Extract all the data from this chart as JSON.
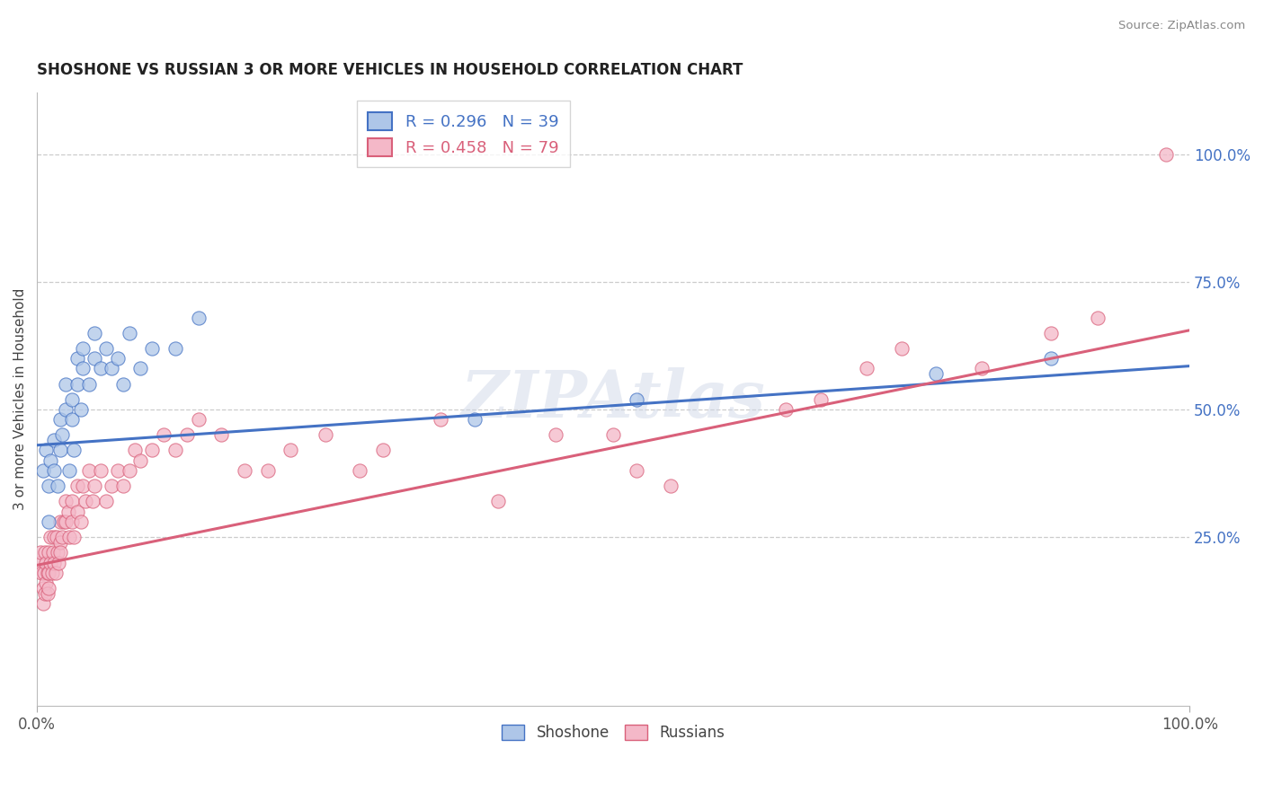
{
  "title": "SHOSHONE VS RUSSIAN 3 OR MORE VEHICLES IN HOUSEHOLD CORRELATION CHART",
  "source": "Source: ZipAtlas.com",
  "ylabel": "3 or more Vehicles in Household",
  "xlim": [
    0,
    1.0
  ],
  "ylim": [
    -0.08,
    1.12
  ],
  "ytick_labels_right": [
    "100.0%",
    "75.0%",
    "50.0%",
    "25.0%"
  ],
  "ytick_vals_right": [
    1.0,
    0.75,
    0.5,
    0.25
  ],
  "shoshone_R": 0.296,
  "shoshone_N": 39,
  "russian_R": 0.458,
  "russian_N": 79,
  "shoshone_color": "#aec6e8",
  "shoshone_line_color": "#4472c4",
  "russian_color": "#f4b8c8",
  "russian_line_color": "#d9607a",
  "legend_label1": "Shoshone",
  "legend_label2": "Russians",
  "watermark": "ZIPAtlas",
  "shoshone_line_start": 0.43,
  "shoshone_line_end": 0.585,
  "russian_line_start": 0.195,
  "russian_line_end": 0.655,
  "shoshone_x": [
    0.005,
    0.008,
    0.01,
    0.01,
    0.012,
    0.015,
    0.015,
    0.018,
    0.02,
    0.02,
    0.022,
    0.025,
    0.025,
    0.028,
    0.03,
    0.03,
    0.032,
    0.035,
    0.035,
    0.038,
    0.04,
    0.04,
    0.045,
    0.05,
    0.05,
    0.055,
    0.06,
    0.065,
    0.07,
    0.075,
    0.08,
    0.09,
    0.1,
    0.12,
    0.14,
    0.38,
    0.52,
    0.78,
    0.88
  ],
  "shoshone_y": [
    0.38,
    0.42,
    0.28,
    0.35,
    0.4,
    0.38,
    0.44,
    0.35,
    0.42,
    0.48,
    0.45,
    0.55,
    0.5,
    0.38,
    0.48,
    0.52,
    0.42,
    0.55,
    0.6,
    0.5,
    0.58,
    0.62,
    0.55,
    0.6,
    0.65,
    0.58,
    0.62,
    0.58,
    0.6,
    0.55,
    0.65,
    0.58,
    0.62,
    0.62,
    0.68,
    0.48,
    0.52,
    0.57,
    0.6
  ],
  "russian_x": [
    0.002,
    0.003,
    0.004,
    0.005,
    0.005,
    0.006,
    0.007,
    0.007,
    0.008,
    0.008,
    0.009,
    0.009,
    0.01,
    0.01,
    0.01,
    0.012,
    0.012,
    0.013,
    0.014,
    0.015,
    0.015,
    0.016,
    0.017,
    0.018,
    0.019,
    0.02,
    0.02,
    0.02,
    0.022,
    0.023,
    0.025,
    0.025,
    0.027,
    0.028,
    0.03,
    0.03,
    0.032,
    0.035,
    0.035,
    0.038,
    0.04,
    0.042,
    0.045,
    0.048,
    0.05,
    0.055,
    0.06,
    0.065,
    0.07,
    0.075,
    0.08,
    0.085,
    0.09,
    0.1,
    0.11,
    0.12,
    0.13,
    0.14,
    0.16,
    0.18,
    0.2,
    0.22,
    0.25,
    0.28,
    0.3,
    0.35,
    0.4,
    0.45,
    0.55,
    0.65,
    0.68,
    0.72,
    0.5,
    0.52,
    0.75,
    0.82,
    0.88,
    0.92,
    0.98
  ],
  "russian_y": [
    0.2,
    0.22,
    0.18,
    0.15,
    0.12,
    0.18,
    0.14,
    0.22,
    0.16,
    0.2,
    0.18,
    0.14,
    0.22,
    0.18,
    0.15,
    0.25,
    0.2,
    0.18,
    0.22,
    0.25,
    0.2,
    0.18,
    0.25,
    0.22,
    0.2,
    0.28,
    0.24,
    0.22,
    0.25,
    0.28,
    0.32,
    0.28,
    0.3,
    0.25,
    0.32,
    0.28,
    0.25,
    0.3,
    0.35,
    0.28,
    0.35,
    0.32,
    0.38,
    0.32,
    0.35,
    0.38,
    0.32,
    0.35,
    0.38,
    0.35,
    0.38,
    0.42,
    0.4,
    0.42,
    0.45,
    0.42,
    0.45,
    0.48,
    0.45,
    0.38,
    0.38,
    0.42,
    0.45,
    0.38,
    0.42,
    0.48,
    0.32,
    0.45,
    0.35,
    0.5,
    0.52,
    0.58,
    0.45,
    0.38,
    0.62,
    0.58,
    0.65,
    0.68,
    1.0
  ]
}
